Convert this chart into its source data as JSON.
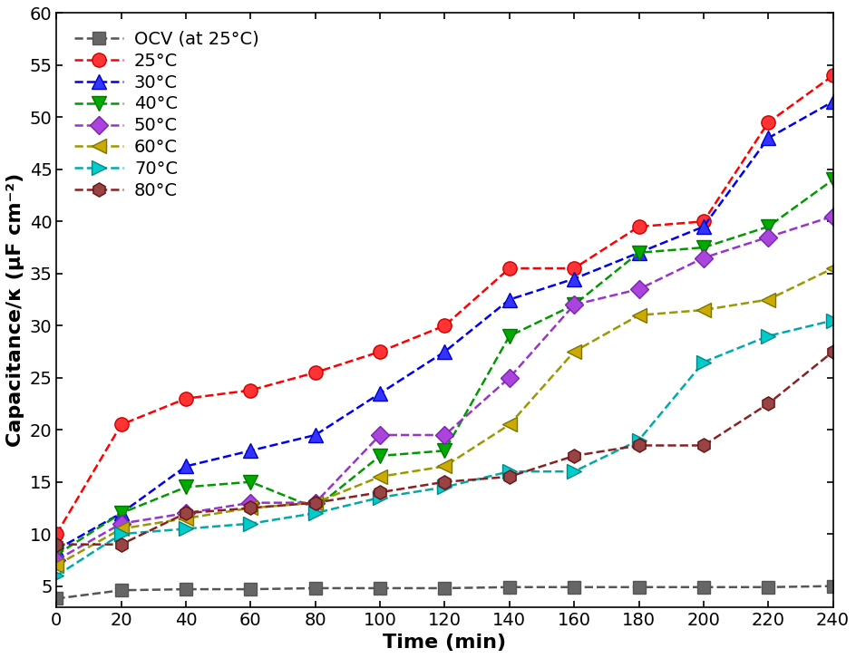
{
  "x": [
    0,
    20,
    40,
    60,
    80,
    100,
    120,
    140,
    160,
    180,
    200,
    220,
    240
  ],
  "series": [
    {
      "label": "OCV (at 25°C)",
      "color": "#555555",
      "linestyle": "--",
      "marker": "s",
      "markersize": 10,
      "markerfacecolor": "#666666",
      "markeredgecolor": "#555555",
      "linewidth": 1.8,
      "values": [
        3.8,
        4.6,
        4.7,
        4.7,
        4.8,
        4.8,
        4.8,
        4.9,
        4.9,
        4.9,
        4.9,
        4.9,
        5.0
      ]
    },
    {
      "label": "25°C",
      "color": "#ff0000",
      "linestyle": "--",
      "marker": "o",
      "markersize": 11,
      "markerfacecolor": "#ff3333",
      "markeredgecolor": "#cc0000",
      "linewidth": 1.8,
      "values": [
        10.0,
        20.5,
        23.0,
        23.8,
        25.5,
        27.5,
        30.0,
        35.5,
        35.5,
        39.5,
        40.0,
        49.5,
        54.0
      ]
    },
    {
      "label": "30°C",
      "color": "#0000ee",
      "linestyle": "--",
      "marker": "^",
      "markersize": 11,
      "markerfacecolor": "#3333ff",
      "markeredgecolor": "#0000cc",
      "linewidth": 1.8,
      "values": [
        8.5,
        12.0,
        16.5,
        18.0,
        19.5,
        23.5,
        27.5,
        32.5,
        34.5,
        37.0,
        39.5,
        48.0,
        51.5
      ]
    },
    {
      "label": "40°C",
      "color": "#009900",
      "linestyle": "--",
      "marker": "v",
      "markersize": 11,
      "markerfacecolor": "#00aa00",
      "markeredgecolor": "#007700",
      "linewidth": 1.8,
      "values": [
        8.0,
        12.0,
        14.5,
        15.0,
        12.5,
        17.5,
        18.0,
        29.0,
        32.0,
        37.0,
        37.5,
        39.5,
        44.0
      ]
    },
    {
      "label": "50°C",
      "color": "#9933cc",
      "linestyle": "--",
      "marker": "D",
      "markersize": 10,
      "markerfacecolor": "#aa44dd",
      "markeredgecolor": "#7722aa",
      "linewidth": 1.8,
      "values": [
        7.5,
        11.0,
        12.0,
        13.0,
        13.0,
        19.5,
        19.5,
        25.0,
        32.0,
        33.5,
        36.5,
        38.5,
        40.5
      ]
    },
    {
      "label": "60°C",
      "color": "#999900",
      "linestyle": "--",
      "marker": "<",
      "markersize": 11,
      "markerfacecolor": "#ccaa00",
      "markeredgecolor": "#777700",
      "linewidth": 1.8,
      "values": [
        7.0,
        10.5,
        11.5,
        12.5,
        13.0,
        15.5,
        16.5,
        20.5,
        27.5,
        31.0,
        31.5,
        32.5,
        35.5
      ]
    },
    {
      "label": "70°C",
      "color": "#00aaaa",
      "linestyle": "--",
      "marker": ">",
      "markersize": 11,
      "markerfacecolor": "#00cccc",
      "markeredgecolor": "#008888",
      "linewidth": 1.8,
      "values": [
        6.0,
        10.0,
        10.5,
        11.0,
        12.0,
        13.5,
        14.5,
        16.0,
        16.0,
        19.0,
        26.5,
        29.0,
        30.5
      ]
    },
    {
      "label": "80°C",
      "color": "#882222",
      "linestyle": "--",
      "marker": "h",
      "markersize": 11,
      "markerfacecolor": "#994444",
      "markeredgecolor": "#661111",
      "linewidth": 1.8,
      "values": [
        9.0,
        9.0,
        12.0,
        12.5,
        13.0,
        14.0,
        15.0,
        15.5,
        17.5,
        18.5,
        18.5,
        22.5,
        27.5
      ]
    }
  ],
  "xlabel": "Time (min)",
  "ylabel": "Capacitance/κ (μF cm⁻²)",
  "xlim": [
    0,
    240
  ],
  "ylim_bottom": 3.0,
  "ylim_top": 60,
  "yticks": [
    5,
    10,
    15,
    20,
    25,
    30,
    35,
    40,
    45,
    50,
    55,
    60
  ],
  "xticks": [
    0,
    20,
    40,
    60,
    80,
    100,
    120,
    140,
    160,
    180,
    200,
    220,
    240
  ],
  "label_fontsize": 16,
  "tick_fontsize": 14,
  "legend_fontsize": 14
}
